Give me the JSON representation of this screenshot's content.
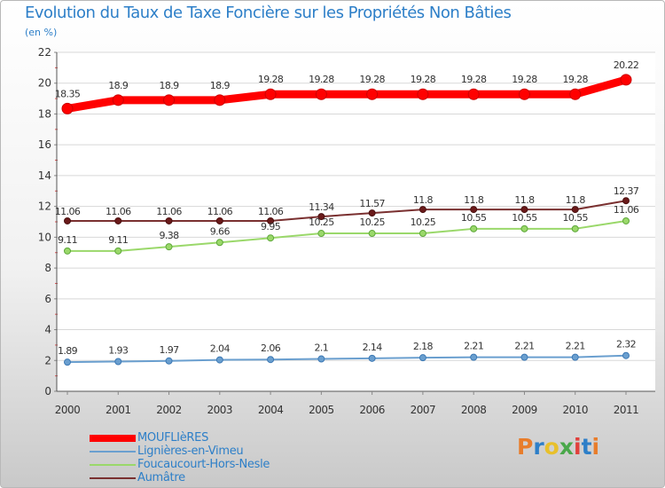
{
  "chart_data": {
    "type": "line",
    "title": "Evolution du Taux de Taxe Foncière sur les Propriétés Non Bâties",
    "subtitle": "(en %)",
    "xlabel": "",
    "ylabel": "",
    "categories": [
      "2000",
      "2001",
      "2002",
      "2003",
      "2004",
      "2005",
      "2006",
      "2007",
      "2008",
      "2009",
      "2010",
      "2011"
    ],
    "ylim": [
      0,
      22
    ],
    "yticks": [
      "0",
      "2",
      "4",
      "6",
      "8",
      "10",
      "12",
      "14",
      "16",
      "18",
      "20",
      "22"
    ],
    "grid": true,
    "legend_position": "bottom-left",
    "series": [
      {
        "name": "MOUFLIèRES",
        "color": "#ff0000",
        "values": [
          18.35,
          18.9,
          18.9,
          18.9,
          19.28,
          19.28,
          19.28,
          19.28,
          19.28,
          19.28,
          19.28,
          20.22
        ],
        "labels": [
          "18.35",
          "18.9",
          "18.9",
          "18.9",
          "19.28",
          "19.28",
          "19.28",
          "19.28",
          "19.28",
          "19.28",
          "19.28",
          "20.22"
        ]
      },
      {
        "name": "Lignières-en-Vimeu",
        "color": "#6a9fcf",
        "values": [
          1.89,
          1.93,
          1.97,
          2.04,
          2.06,
          2.1,
          2.14,
          2.18,
          2.21,
          2.21,
          2.21,
          2.32
        ],
        "labels": [
          "1.89",
          "1.93",
          "1.97",
          "2.04",
          "2.06",
          "2.1",
          "2.14",
          "2.18",
          "2.21",
          "2.21",
          "2.21",
          "2.32"
        ]
      },
      {
        "name": "Foucaucourt-Hors-Nesle",
        "color": "#9ad86a",
        "values": [
          9.11,
          9.11,
          9.38,
          9.66,
          9.95,
          10.25,
          10.25,
          10.25,
          10.55,
          10.55,
          10.55,
          11.06
        ],
        "labels": [
          "9.11",
          "9.11",
          "9.38",
          "9.66",
          "9.95",
          "10.25",
          "10.25",
          "10.25",
          "10.55",
          "10.55",
          "10.55",
          "11.06"
        ]
      },
      {
        "name": "Aumâtre",
        "color": "#7a3030",
        "values": [
          11.06,
          11.06,
          11.06,
          11.06,
          11.06,
          11.34,
          11.57,
          11.8,
          11.8,
          11.8,
          11.8,
          12.37
        ],
        "labels": [
          "11.06",
          "11.06",
          "11.06",
          "11.06",
          "11.06",
          "11.34",
          "11.57",
          "11.8",
          "11.8",
          "11.8",
          "11.8",
          "12.37"
        ]
      }
    ]
  },
  "brand": {
    "text": "Proxiti",
    "letter_colors": [
      "#e87d2b",
      "#2d7fc8",
      "#e8c02b",
      "#4aa84a",
      "#e0403c",
      "#2d7fc8",
      "#e87d2b"
    ]
  }
}
